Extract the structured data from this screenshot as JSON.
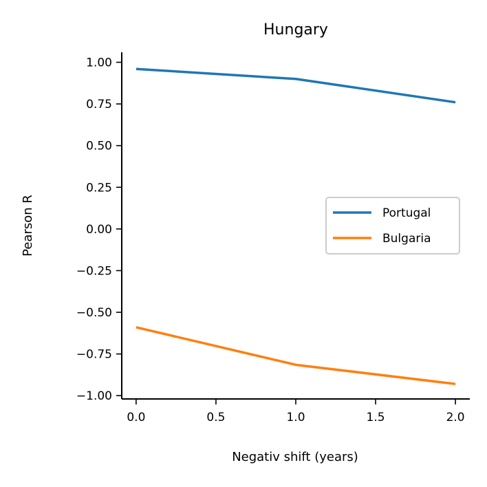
{
  "chart_data": {
    "type": "line",
    "title": "Hungary",
    "xlabel": "Negativ shift (years)",
    "ylabel": "Pearson R",
    "x": [
      0,
      1,
      2
    ],
    "series": [
      {
        "name": "Portugal",
        "color": "#1f77b4",
        "values": [
          0.96,
          0.9,
          0.76
        ]
      },
      {
        "name": "Bulgaria",
        "color": "#ff7f0e",
        "values": [
          -0.59,
          -0.815,
          -0.93
        ]
      }
    ],
    "xlim": [
      -0.09,
      2.09
    ],
    "ylim": [
      -1.02,
      1.06
    ],
    "xticks": [
      0,
      0.5,
      1,
      1.5,
      2
    ],
    "xtick_labels": [
      "0.0",
      "0.5",
      "1.0",
      "1.5",
      "2.0"
    ],
    "yticks": [
      1,
      0.75,
      0.5,
      0.25,
      0,
      -0.25,
      -0.5,
      -0.75,
      -1
    ],
    "ytick_labels": [
      "1.00",
      "0.75",
      "0.50",
      "0.25",
      "0.00",
      "−0.25",
      "−0.50",
      "−0.75",
      "−1.00"
    ],
    "grid": false,
    "legend_position": "center-right"
  }
}
